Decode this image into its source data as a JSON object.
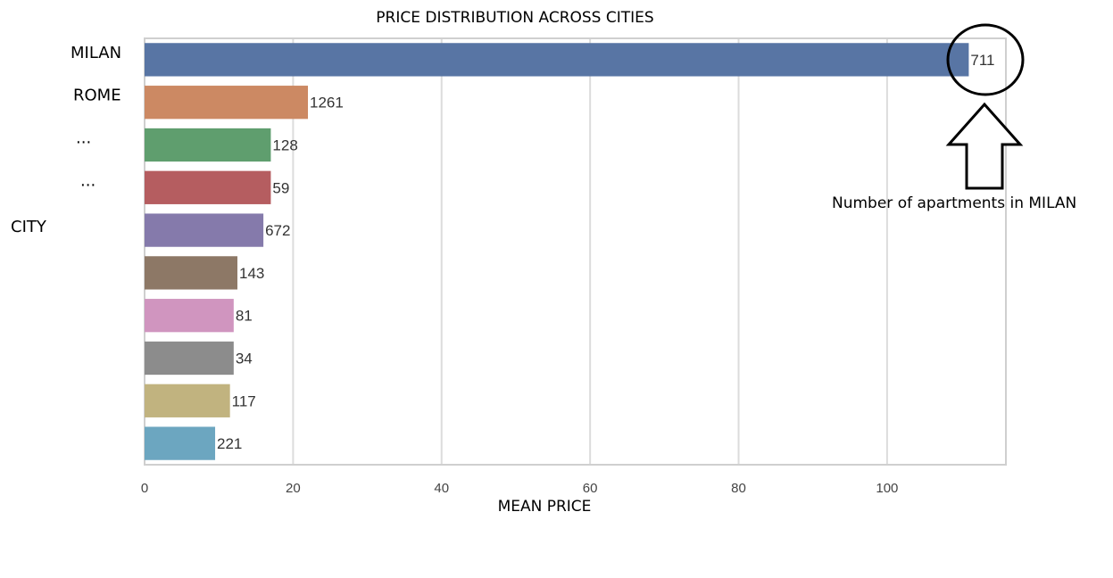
{
  "chart_data": {
    "type": "bar",
    "orientation": "horizontal",
    "title": "PRICE DISTRIBUTION ACROSS CITIES",
    "xlabel": "MEAN PRICE",
    "ylabel": "CITY",
    "categories": [
      "MILAN",
      "ROME",
      "...",
      "...",
      "",
      "",
      "",
      "",
      "",
      ""
    ],
    "values": [
      111,
      22,
      17,
      17,
      16,
      12.5,
      12,
      12,
      11.5,
      9.5
    ],
    "bar_labels": [
      "711",
      "1261",
      "128",
      "59",
      "672",
      "143",
      "81",
      "34",
      "117",
      "221"
    ],
    "colors": [
      "#5875a4",
      "#cc8963",
      "#5f9e6e",
      "#b55d60",
      "#857aab",
      "#8d7866",
      "#d095bf",
      "#8c8c8c",
      "#c1b37f",
      "#6ca6c0"
    ],
    "xlim": [
      0,
      116
    ],
    "xticks": [
      0,
      20,
      40,
      60,
      80,
      100
    ],
    "grid": "vertical",
    "annotation": {
      "text": "Number of apartments in MILAN",
      "target": "MILAN",
      "marker": "circle with up arrow"
    }
  }
}
